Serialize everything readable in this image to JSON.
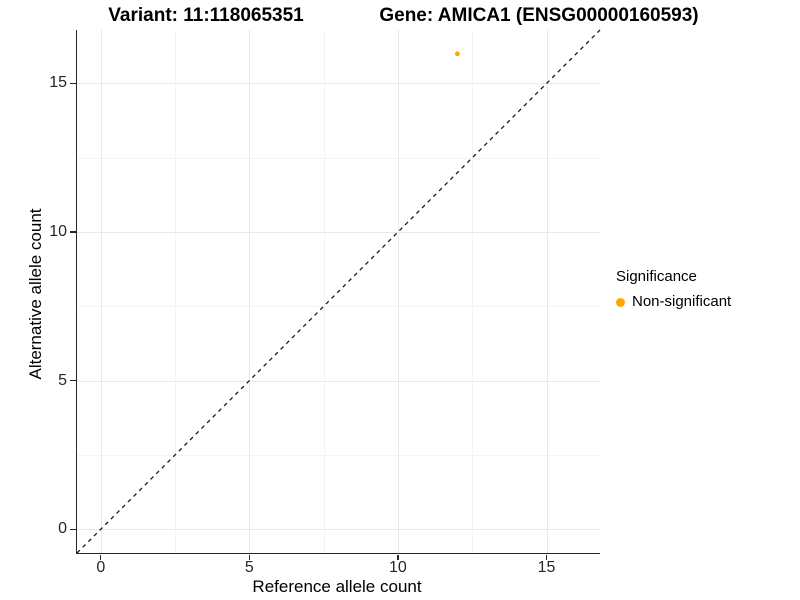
{
  "titles": {
    "variant": "Variant: 11:118065351",
    "gene": "Gene: AMICA1 (ENSG00000160593)"
  },
  "legend": {
    "title": "Significance",
    "items": [
      {
        "label": "Non-significant",
        "color": "#FFA500"
      }
    ]
  },
  "colors": {
    "point": "#FFA500",
    "axis_line": "#262626",
    "grid_major": "#e9e9e9",
    "grid_minor": "#f4f4f4",
    "reference_line": "#1a1a1a"
  },
  "chart_data": {
    "type": "scatter",
    "title_left": "Variant: 11:118065351",
    "title_right": "Gene: AMICA1 (ENSG00000160593)",
    "xlabel": "Reference allele count",
    "ylabel": "Alternative allele count",
    "xlim": [
      -0.8,
      16.8
    ],
    "ylim": [
      -0.8,
      16.8
    ],
    "x_ticks": [
      0,
      5,
      10,
      15
    ],
    "y_ticks": [
      0,
      5,
      10,
      15
    ],
    "x_minor": [
      2.5,
      7.5,
      12.5
    ],
    "y_minor": [
      2.5,
      7.5,
      12.5
    ],
    "grid": true,
    "legend_position": "right",
    "legend_title": "Significance",
    "series": [
      {
        "name": "Non-significant",
        "color": "#FFA500",
        "points": [
          {
            "x": 12,
            "y": 16
          }
        ]
      }
    ],
    "reference_line": {
      "type": "identity",
      "slope": 1,
      "intercept": 0,
      "style": "dashed",
      "color": "#1a1a1a"
    }
  }
}
